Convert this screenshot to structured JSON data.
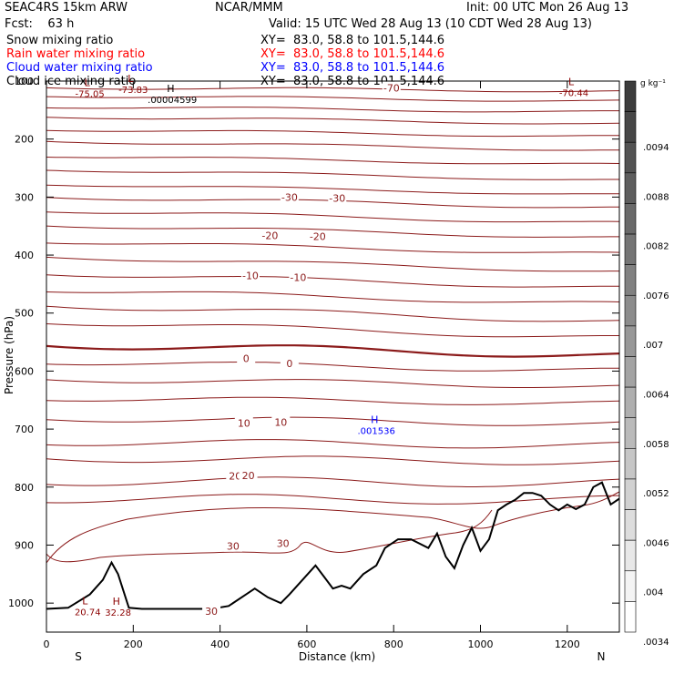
{
  "header": {
    "model": "SEAC4RS 15km ARW",
    "center": "NCAR/MMM",
    "init": "Init: 00 UTC Mon 26 Aug 13",
    "fcst": "Fcst:    63 h",
    "valid": "Valid: 15 UTC Wed 28 Aug 13 (10 CDT Wed 28 Aug 13)",
    "fields": [
      {
        "name": "Snow mixing ratio",
        "xy": "XY=  83.0, 58.8 to 101.5,144.6",
        "color": "#000000"
      },
      {
        "name": "Rain water mixing ratio",
        "xy": "XY=  83.0, 58.8 to 101.5,144.6",
        "color": "#ff0000"
      },
      {
        "name": "Cloud water mixing ratio",
        "xy": "XY=  83.0, 58.8 to 101.5,144.6",
        "color": "#0000ff"
      },
      {
        "name": "Cloud ice mixing ratio",
        "xy": "XY=  83.0, 58.8 to 101.5,144.6",
        "color": "#000000"
      }
    ]
  },
  "chart_data": {
    "type": "contour",
    "xlabel": "Distance (km)",
    "ylabel": "Pressure (hPa)",
    "xlim": [
      0,
      1320
    ],
    "ylim": [
      1050,
      100
    ],
    "xticks": [
      0,
      200,
      400,
      600,
      800,
      1000,
      1200
    ],
    "yticks": [
      100,
      200,
      300,
      400,
      500,
      600,
      700,
      800,
      900,
      1000
    ],
    "x_end_labels": {
      "left": "S",
      "right": "N"
    },
    "colorbar": {
      "unit": "g kg⁻¹",
      "ticks": [
        ".0094",
        ".0088",
        ".0082",
        ".0076",
        ".007",
        ".0064",
        ".0058",
        ".0052",
        ".0046",
        ".004",
        ".0034"
      ]
    },
    "temperature_contour_labels": [
      {
        "label": "-70",
        "x": 795,
        "p": 112
      },
      {
        "label": "-30",
        "x": 560,
        "p": 300
      },
      {
        "label": "-30",
        "x": 670,
        "p": 302
      },
      {
        "label": "-20",
        "x": 515,
        "p": 366
      },
      {
        "label": "-20",
        "x": 625,
        "p": 368
      },
      {
        "label": "-10",
        "x": 470,
        "p": 435
      },
      {
        "label": "-10",
        "x": 580,
        "p": 438
      },
      {
        "label": "0",
        "x": 460,
        "p": 578
      },
      {
        "label": "0",
        "x": 560,
        "p": 587
      },
      {
        "label": "10",
        "x": 455,
        "p": 690
      },
      {
        "label": "10",
        "x": 540,
        "p": 688
      },
      {
        "label": "20",
        "x": 435,
        "p": 781
      },
      {
        "label": "20",
        "x": 465,
        "p": 780
      },
      {
        "label": "30",
        "x": 430,
        "p": 902
      },
      {
        "label": "30",
        "x": 545,
        "p": 897
      },
      {
        "label": "30",
        "x": 380,
        "p": 1014
      }
    ],
    "extrema": [
      {
        "mark": "L",
        "value": "-75.05",
        "x": 100,
        "p": 112,
        "color": "#8b0000"
      },
      {
        "mark": "L",
        "value": "-73.83",
        "x": 200,
        "p": 105,
        "color": "#8b0000"
      },
      {
        "mark": "L",
        "value": "-70.44",
        "x": 1215,
        "p": 110,
        "color": "#8b0000"
      },
      {
        "mark": "H",
        "value": ".00004599",
        "x": 290,
        "p": 122,
        "color": "#000000"
      },
      {
        "mark": "H",
        "value": ".001536",
        "x": 760,
        "p": 693,
        "color": "#0000ff"
      },
      {
        "mark": "L",
        "value": "20.74",
        "x": 95,
        "p": 1005,
        "color": "#8b0000"
      },
      {
        "mark": "H",
        "value": "32.28",
        "x": 165,
        "p": 1006,
        "color": "#8b0000"
      }
    ],
    "terrain_surface": {
      "x": [
        0,
        50,
        100,
        130,
        150,
        165,
        190,
        220,
        260,
        320,
        380,
        420,
        460,
        480,
        510,
        540,
        560,
        590,
        620,
        640,
        660,
        680,
        700,
        730,
        760,
        780,
        810,
        840,
        880,
        900,
        920,
        940,
        960,
        980,
        1000,
        1020,
        1040,
        1060,
        1080,
        1100,
        1120,
        1140,
        1160,
        1180,
        1200,
        1220,
        1240,
        1260,
        1280,
        1300,
        1320
      ],
      "p": [
        1010,
        1008,
        985,
        960,
        930,
        950,
        1008,
        1010,
        1010,
        1010,
        1010,
        1005,
        985,
        975,
        990,
        1000,
        985,
        960,
        935,
        955,
        975,
        970,
        975,
        950,
        935,
        905,
        890,
        890,
        905,
        880,
        920,
        940,
        900,
        870,
        910,
        890,
        840,
        830,
        822,
        810,
        810,
        815,
        830,
        840,
        830,
        838,
        830,
        800,
        792,
        830,
        820
      ]
    }
  }
}
